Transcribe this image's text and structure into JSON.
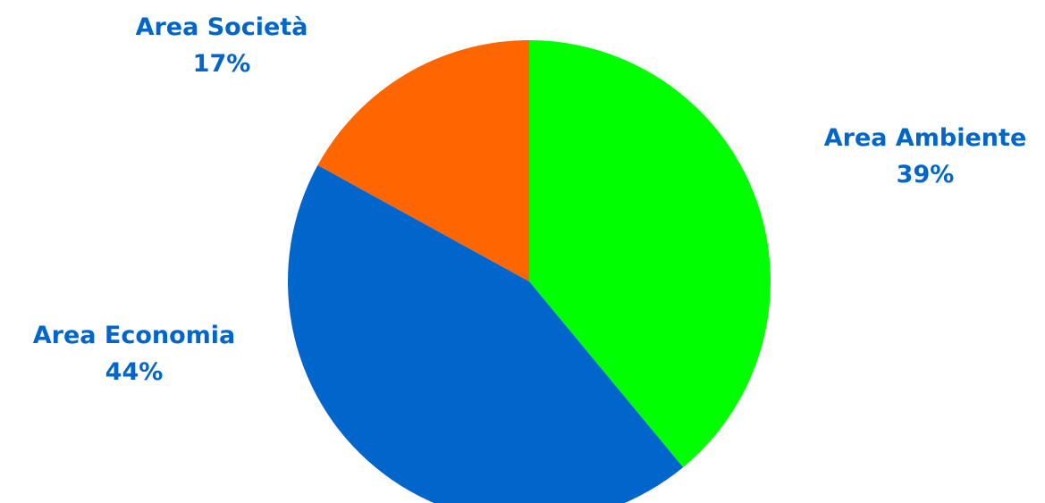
{
  "chart_data": {
    "type": "pie",
    "title": "",
    "slices": [
      {
        "label": "Area Ambiente",
        "value": 39,
        "value_label": "39%",
        "color": "#00ff00"
      },
      {
        "label": "Area Economia",
        "value": 44,
        "value_label": "44%",
        "color": "#0066cc"
      },
      {
        "label": "Area Società",
        "value": 17,
        "value_label": "17%",
        "color": "#ff6600"
      }
    ],
    "start": "12 o'clock",
    "direction": "clockwise",
    "label_color": "#0066cc",
    "legend": "none"
  }
}
